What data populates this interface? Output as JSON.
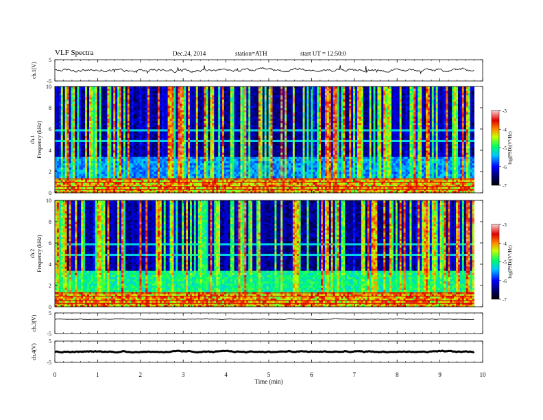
{
  "header": {
    "title": "VLF Spectra",
    "date": "Dec.24, 2014",
    "station": "station=ATH",
    "start": "start UT = 12:50:0"
  },
  "chart_data": [
    {
      "type": "line",
      "ylabel": "ch.1(V)",
      "ylim": [
        -5,
        5
      ],
      "yticks": [
        "5",
        "-5"
      ],
      "description_values": {
        "baseline": 0,
        "noise_amplitude": 0.8
      }
    },
    {
      "type": "heatmap",
      "ylabel": "ch.1\nFrequency (kHz)",
      "ylabel_top": "ch.1",
      "ylabel_bottom": "Frequency (kHz)",
      "ylim": [
        0,
        10
      ],
      "yticks": [
        "0",
        "2",
        "4",
        "6",
        "8",
        "10"
      ],
      "colorbar": {
        "label": "log(PSD)(V²/Hz)",
        "range": [
          -7,
          -3
        ],
        "ticks": [
          "-3",
          "-4",
          "-5",
          "-6",
          "-7"
        ]
      }
    },
    {
      "type": "heatmap",
      "ylabel": "ch.2\nFrequency (kHz)",
      "ylabel_top": "ch.2",
      "ylabel_bottom": "Frequency (kHz)",
      "ylim": [
        0,
        10
      ],
      "yticks": [
        "0",
        "2",
        "4",
        "6",
        "8",
        "10"
      ],
      "colorbar": {
        "label": "log(PSD)(V²/Hz)",
        "range": [
          -7,
          -3
        ],
        "ticks": [
          "-3",
          "-4",
          "-5",
          "-6",
          "-7"
        ]
      }
    },
    {
      "type": "line",
      "ylabel": "ch.3(V)",
      "ylim": [
        -5,
        5
      ],
      "yticks": [
        "5",
        "-5"
      ],
      "description_values": {
        "baseline": 2,
        "noise_amplitude": 0.1
      }
    },
    {
      "type": "line",
      "ylabel": "ch.4(V)",
      "ylim": [
        -5,
        5
      ],
      "yticks": [
        "5",
        "-5"
      ],
      "description_values": {
        "baseline": 0,
        "noise_amplitude": 0.3
      }
    }
  ],
  "xaxis": {
    "label": "Time (min)",
    "xlim": [
      0,
      10
    ],
    "ticks": [
      "0",
      "1",
      "2",
      "3",
      "4",
      "5",
      "6",
      "7",
      "8",
      "9",
      "10"
    ],
    "data_end": 9.8
  },
  "colors": {
    "background": "#ffffff",
    "line": "#000000"
  }
}
